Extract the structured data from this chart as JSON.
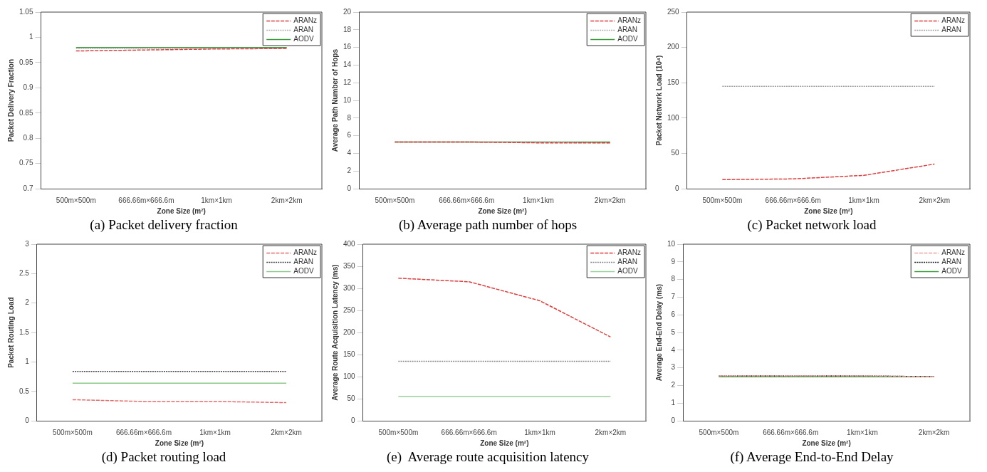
{
  "chart_data": [
    {
      "type": "line",
      "title": "(a) Packet delivery fraction",
      "xlabel": "Zone Size (m²)",
      "ylabel": "Packet Delivery Fraction",
      "categories": [
        "500m×500m",
        "666.66m×666.6m",
        "1km×1km",
        "2km×2km"
      ],
      "ylim": [
        0.7,
        1.05
      ],
      "yticks": [
        {
          "value": 0.7,
          "label": "0.7"
        },
        0.75,
        {
          "value": 0.8,
          "label": "0.8"
        },
        0.85,
        {
          "value": 0.9,
          "label": "0.9"
        },
        0.95,
        1,
        1.05
      ],
      "grid": false,
      "legend": "top right",
      "marker": "none",
      "series": [
        {
          "name": "ARANz",
          "color": "#e03c3c",
          "line_style": "dashed",
          "values": [
            0.973,
            0.975,
            0.977,
            0.978
          ]
        },
        {
          "name": "ARAN",
          "color": "#b0b0b0",
          "line_style": "dotted",
          "values": [
            0.978,
            0.978,
            0.978,
            0.978
          ]
        },
        {
          "name": "AODV",
          "color": "#3c9a3c",
          "line_style": "solid",
          "values": [
            0.98,
            0.98,
            0.98,
            0.98
          ]
        }
      ]
    },
    {
      "type": "line",
      "title": "(b) Average path number of hops",
      "xlabel": "Zone Size (m²)",
      "ylabel": "Average Path Number of Hops",
      "categories": [
        "500m×500m",
        "666.66m×666.6m",
        "1km×1km",
        "2km×2km"
      ],
      "ylim": [
        0,
        20
      ],
      "yticks": [
        0,
        2,
        4,
        6,
        8,
        10,
        12,
        14,
        16,
        18,
        20
      ],
      "grid": false,
      "legend": "top right",
      "marker": "none",
      "series": [
        {
          "name": "ARANz",
          "color": "#e03c3c",
          "line_style": "dashed",
          "values": [
            5.3,
            5.3,
            5.2,
            5.2
          ]
        },
        {
          "name": "ARAN",
          "color": "#b0b0b0",
          "line_style": "dotted",
          "values": [
            5.3,
            5.3,
            5.3,
            5.2
          ]
        },
        {
          "name": "AODV",
          "color": "#3c9a3c",
          "line_style": "solid",
          "values": [
            5.3,
            5.3,
            5.3,
            5.3
          ]
        }
      ]
    },
    {
      "type": "line",
      "title": "(c) Packet network load",
      "xlabel": "Zone Size (m²)",
      "ylabel": "Packet Network Load (10⁴)",
      "categories": [
        "500m×500m",
        "666.66m×666.6m",
        "1km×1km",
        "2km×2km"
      ],
      "ylim": [
        0,
        250
      ],
      "yticks": [
        0,
        50,
        100,
        150,
        200,
        250
      ],
      "grid": false,
      "legend": "top right",
      "marker": "none",
      "series": [
        {
          "name": "ARANz",
          "color": "#e03c3c",
          "line_style": "dashed",
          "values": [
            13,
            14,
            19,
            35
          ]
        },
        {
          "name": "ARAN",
          "color": "#a0a0a0",
          "line_style": "dotted",
          "values": [
            145,
            145,
            145,
            145
          ]
        }
      ]
    },
    {
      "type": "line",
      "title": "(d) Packet routing load",
      "xlabel": "Zone Size (m²)",
      "ylabel": "Packet Routing Load",
      "categories": [
        "500m×500m",
        "666.66m×666.6m",
        "1km×1km",
        "2km×2km"
      ],
      "ylim": [
        0,
        3
      ],
      "yticks": [
        0,
        0.5,
        1,
        1.5,
        2,
        2.5,
        3
      ],
      "grid": false,
      "legend": "top right",
      "marker": "none",
      "series": [
        {
          "name": "ARANz",
          "color": "#e86a6a",
          "line_style": "dashed",
          "values": [
            0.36,
            0.33,
            0.33,
            0.31
          ]
        },
        {
          "name": "ARAN",
          "color": "#444444",
          "line_style": "dotted",
          "values": [
            0.84,
            0.84,
            0.84,
            0.84
          ]
        },
        {
          "name": "AODV",
          "color": "#8cc88c",
          "line_style": "solid",
          "values": [
            0.64,
            0.64,
            0.64,
            0.64
          ]
        }
      ]
    },
    {
      "type": "line",
      "title": "(e)  Average route acquisition latency",
      "xlabel": "Zone Size (m²)",
      "ylabel": "Average Route Acquisition Latency (ms)",
      "categories": [
        "500m×500m",
        "666.66m×666.6m",
        "1km×1km",
        "2km×2km"
      ],
      "ylim": [
        0,
        400
      ],
      "yticks": [
        0,
        50,
        100,
        150,
        200,
        250,
        300,
        350,
        400
      ],
      "grid": false,
      "legend": "top right",
      "marker": "none",
      "series": [
        {
          "name": "ARANz",
          "color": "#e03c3c",
          "line_style": "dashed",
          "values": [
            323,
            315,
            272,
            190
          ]
        },
        {
          "name": "ARAN",
          "color": "#888888",
          "line_style": "dotted",
          "values": [
            135,
            135,
            135,
            135
          ]
        },
        {
          "name": "AODV",
          "color": "#9ad09a",
          "line_style": "solid",
          "values": [
            55,
            55,
            55,
            55
          ]
        }
      ]
    },
    {
      "type": "line",
      "title": "(f) Average End-to-End Delay",
      "xlabel": "Zone Size (m²)",
      "ylabel": "Average End-End Delay (ms)",
      "categories": [
        "500m×500m",
        "666.66m×666.6m",
        "1km×1km",
        "2km×2km"
      ],
      "ylim": [
        0,
        10
      ],
      "yticks": [
        0,
        1,
        2,
        3,
        4,
        5,
        6,
        7,
        8,
        9,
        10
      ],
      "grid": false,
      "legend": "top right",
      "marker": "none",
      "series": [
        {
          "name": "ARANz",
          "color": "#f0a0a0",
          "line_style": "dashed",
          "values": [
            2.55,
            2.55,
            2.55,
            2.5
          ]
        },
        {
          "name": "ARAN",
          "color": "#222222",
          "line_style": "dotted",
          "values": [
            2.55,
            2.55,
            2.55,
            2.5
          ]
        },
        {
          "name": "AODV",
          "color": "#3c9a3c",
          "line_style": "solid",
          "values": [
            2.5,
            2.5,
            2.5,
            2.5
          ]
        }
      ]
    }
  ]
}
